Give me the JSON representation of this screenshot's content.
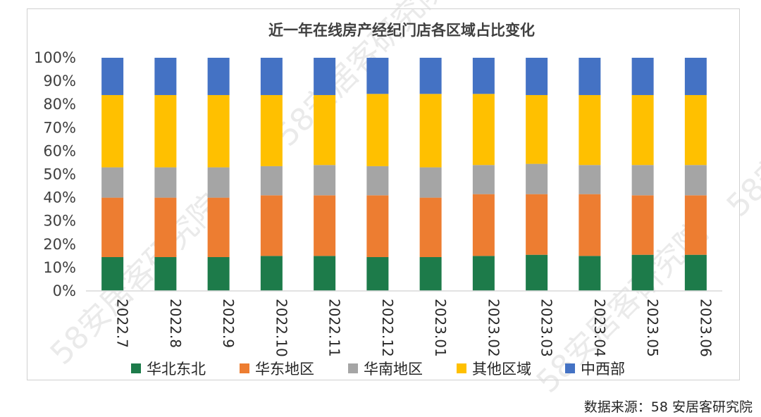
{
  "chart_data": {
    "type": "bar",
    "stacked": true,
    "title": "近一年在线房产经纪门店各区域占比变化",
    "categories": [
      "2022.7",
      "2022.8",
      "2022.9",
      "2022.10",
      "2022.11",
      "2022.12",
      "2023.01",
      "2023.02",
      "2023.03",
      "2023.04",
      "2023.05",
      "2023.06"
    ],
    "ylim": [
      0,
      100
    ],
    "yticks": [
      "0%",
      "10%",
      "20%",
      "30%",
      "40%",
      "50%",
      "60%",
      "70%",
      "80%",
      "90%",
      "100%"
    ],
    "legend_position": "bottom",
    "grid": false,
    "series": [
      {
        "name": "华北东北",
        "color": "#1d7b4a",
        "values": [
          14.5,
          14.5,
          14.5,
          15,
          15,
          14.5,
          14.5,
          15,
          15.5,
          15,
          15.5,
          15.5
        ]
      },
      {
        "name": "华东地区",
        "color": "#ed7d31",
        "values": [
          25.5,
          25.5,
          25.5,
          26,
          26,
          26.5,
          25.5,
          26.5,
          26,
          26.5,
          25.5,
          25.5
        ]
      },
      {
        "name": "华南地区",
        "color": "#a5a5a5",
        "values": [
          13,
          13,
          13,
          12.5,
          13,
          12.5,
          13,
          12.5,
          13,
          12.5,
          13,
          13
        ]
      },
      {
        "name": "其他区域",
        "color": "#ffc000",
        "values": [
          31,
          31,
          31,
          30.5,
          30,
          31,
          31.5,
          30.5,
          29.5,
          30,
          30,
          30
        ]
      },
      {
        "name": "中西部",
        "color": "#4472c4",
        "values": [
          16,
          16,
          16,
          16,
          16,
          15.5,
          15.5,
          15.5,
          16,
          16,
          16,
          16
        ]
      }
    ]
  },
  "source_text": "数据来源：58 安居客研究院",
  "watermark_text": "58安居客研究院"
}
